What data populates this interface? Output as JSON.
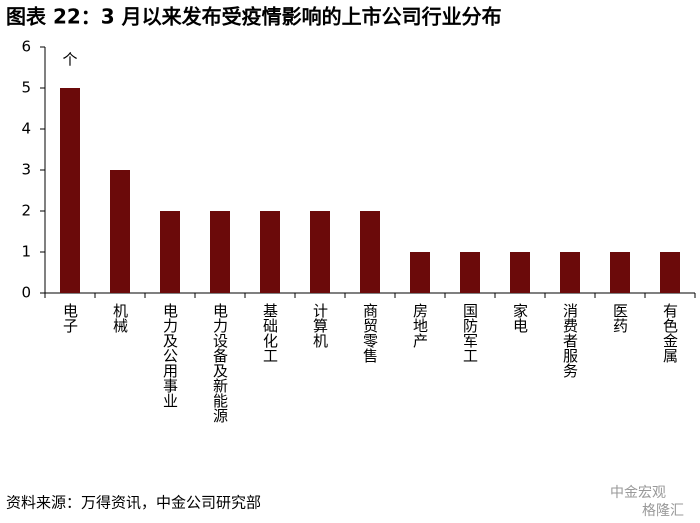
{
  "chart_data": {
    "type": "bar",
    "title": "图表 22：3 月以来发布受疫情影响的上市公司行业分布",
    "unit": "个",
    "categories": [
      "电子",
      "机械",
      "电力及公用事业",
      "电力设备及新能源",
      "基础化工",
      "计算机",
      "商贸零售",
      "房地产",
      "国防军工",
      "家电",
      "消费者服务",
      "医药",
      "有色金属"
    ],
    "values": [
      5,
      3,
      2,
      2,
      2,
      2,
      2,
      1,
      1,
      1,
      1,
      1,
      1
    ],
    "color": "#6b0a0a",
    "ylim": [
      0,
      6
    ],
    "yticks": [
      0,
      1,
      2,
      3,
      4,
      5,
      6
    ],
    "grid": false,
    "source": "资料来源：万得资讯，中金公司研究部",
    "watermarks": [
      "中金宏观",
      "格隆汇"
    ]
  }
}
